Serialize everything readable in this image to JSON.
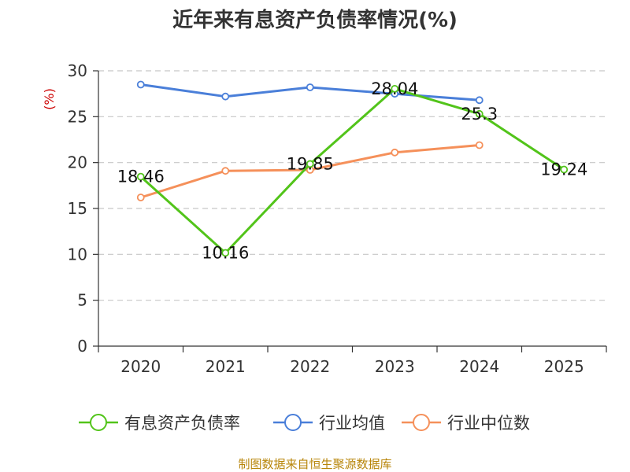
{
  "chart_data": {
    "type": "line",
    "title": "近年来有息资产负债率情况(%)",
    "ylabel": "(%)",
    "xlabel": "",
    "categories": [
      "2020",
      "2021",
      "2022",
      "2023",
      "2024",
      "2025"
    ],
    "ylim": [
      0,
      30
    ],
    "yticks": [
      0,
      5,
      10,
      15,
      20,
      25,
      30
    ],
    "grid": true,
    "legend_position": "bottom",
    "series": [
      {
        "name": "有息资产负债率",
        "color": "#52c41a",
        "values": [
          18.46,
          10.16,
          19.85,
          28.04,
          25.3,
          19.24
        ],
        "labels": [
          "18.46",
          "10.16",
          "19.85",
          "28.04",
          "25.3",
          "19.24"
        ]
      },
      {
        "name": "行业均值",
        "color": "#4a7fd9",
        "values": [
          28.5,
          27.2,
          28.2,
          27.5,
          26.8,
          null
        ]
      },
      {
        "name": "行业中位数",
        "color": "#f5905a",
        "values": [
          16.2,
          19.1,
          19.2,
          21.1,
          21.9,
          null
        ]
      }
    ]
  },
  "source": "制图数据来自恒生聚源数据库"
}
